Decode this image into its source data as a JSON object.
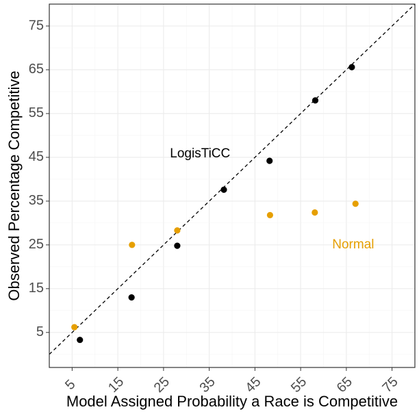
{
  "chart_data": {
    "type": "scatter",
    "title": "",
    "xlabel": "Model Assigned Probability a Race is Competitive",
    "ylabel": "Observed Percentage Competitive",
    "xlim": [
      0,
      80
    ],
    "ylim": [
      -3,
      80
    ],
    "x_ticks": [
      5,
      15,
      25,
      35,
      45,
      55,
      65,
      75
    ],
    "y_ticks": [
      5,
      15,
      25,
      35,
      45,
      55,
      65,
      75
    ],
    "grid": true,
    "reference_line": "y = x (dashed)",
    "series": [
      {
        "color": "#000000",
        "points": [
          {
            "x": 6.7,
            "y": 3.3
          },
          {
            "x": 18.0,
            "y": 13.0
          },
          {
            "x": 28.0,
            "y": 24.8
          },
          {
            "x": 38.2,
            "y": 37.6
          },
          {
            "x": 48.2,
            "y": 44.2
          },
          {
            "x": 58.2,
            "y": 58.0
          },
          {
            "x": 66.2,
            "y": 65.6
          }
        ]
      },
      {
        "color": "#E69F00",
        "points": [
          {
            "x": 5.5,
            "y": 6.2
          },
          {
            "x": 18.1,
            "y": 25.0
          },
          {
            "x": 28.0,
            "y": 28.3
          },
          {
            "x": 48.3,
            "y": 31.8
          },
          {
            "x": 58.1,
            "y": 32.4
          },
          {
            "x": 67.0,
            "y": 34.4
          }
        ]
      }
    ],
    "annotations": [
      {
        "text": "LogisTiCC",
        "x": 33.0,
        "y": 45.8,
        "color": "#000000"
      },
      {
        "text": "Normal",
        "x": 66.5,
        "y": 25.0,
        "color": "#E69F00"
      }
    ]
  }
}
